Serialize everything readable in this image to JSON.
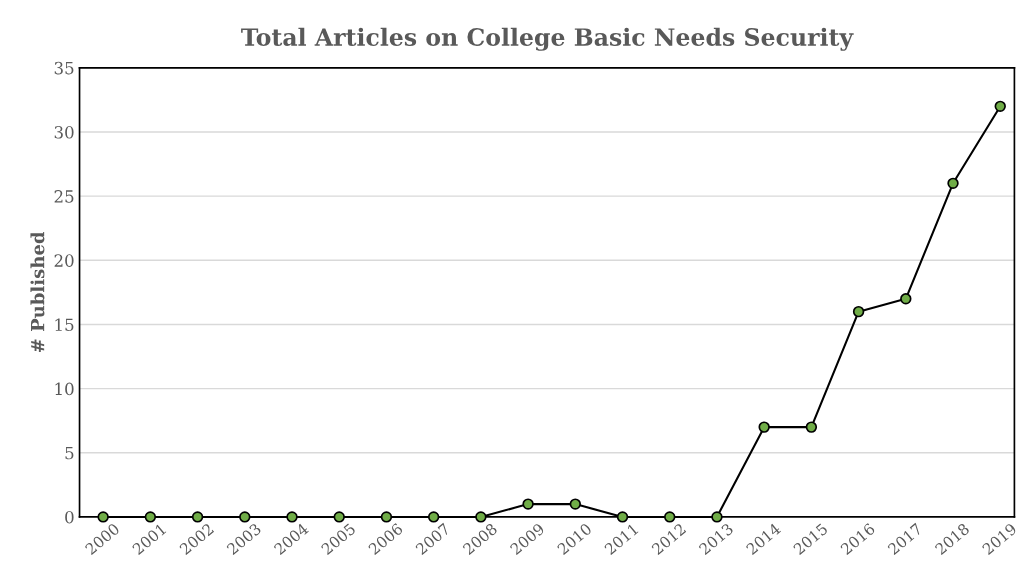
{
  "chart_data": {
    "type": "line",
    "title": "Total Articles on College Basic Needs Security",
    "ylabel": "# Published",
    "categories": [
      "2000",
      "2001",
      "2002",
      "2003",
      "2004",
      "2005",
      "2006",
      "2007",
      "2008",
      "2009",
      "2010",
      "2011",
      "2012",
      "2013",
      "2014",
      "2015",
      "2016",
      "2017",
      "2018",
      "2019"
    ],
    "series": [
      {
        "color": "#70ad47",
        "values": [
          0,
          0,
          0,
          0,
          0,
          0,
          0,
          0,
          0,
          1,
          1,
          0,
          0,
          0,
          7,
          7,
          16,
          17,
          26,
          32
        ]
      }
    ],
    "ylim": [
      0,
      35
    ],
    "yticks": [
      0,
      5,
      10,
      15,
      20,
      25,
      30,
      35
    ],
    "grid": "y",
    "marker": "circle",
    "line_style": "solid"
  }
}
